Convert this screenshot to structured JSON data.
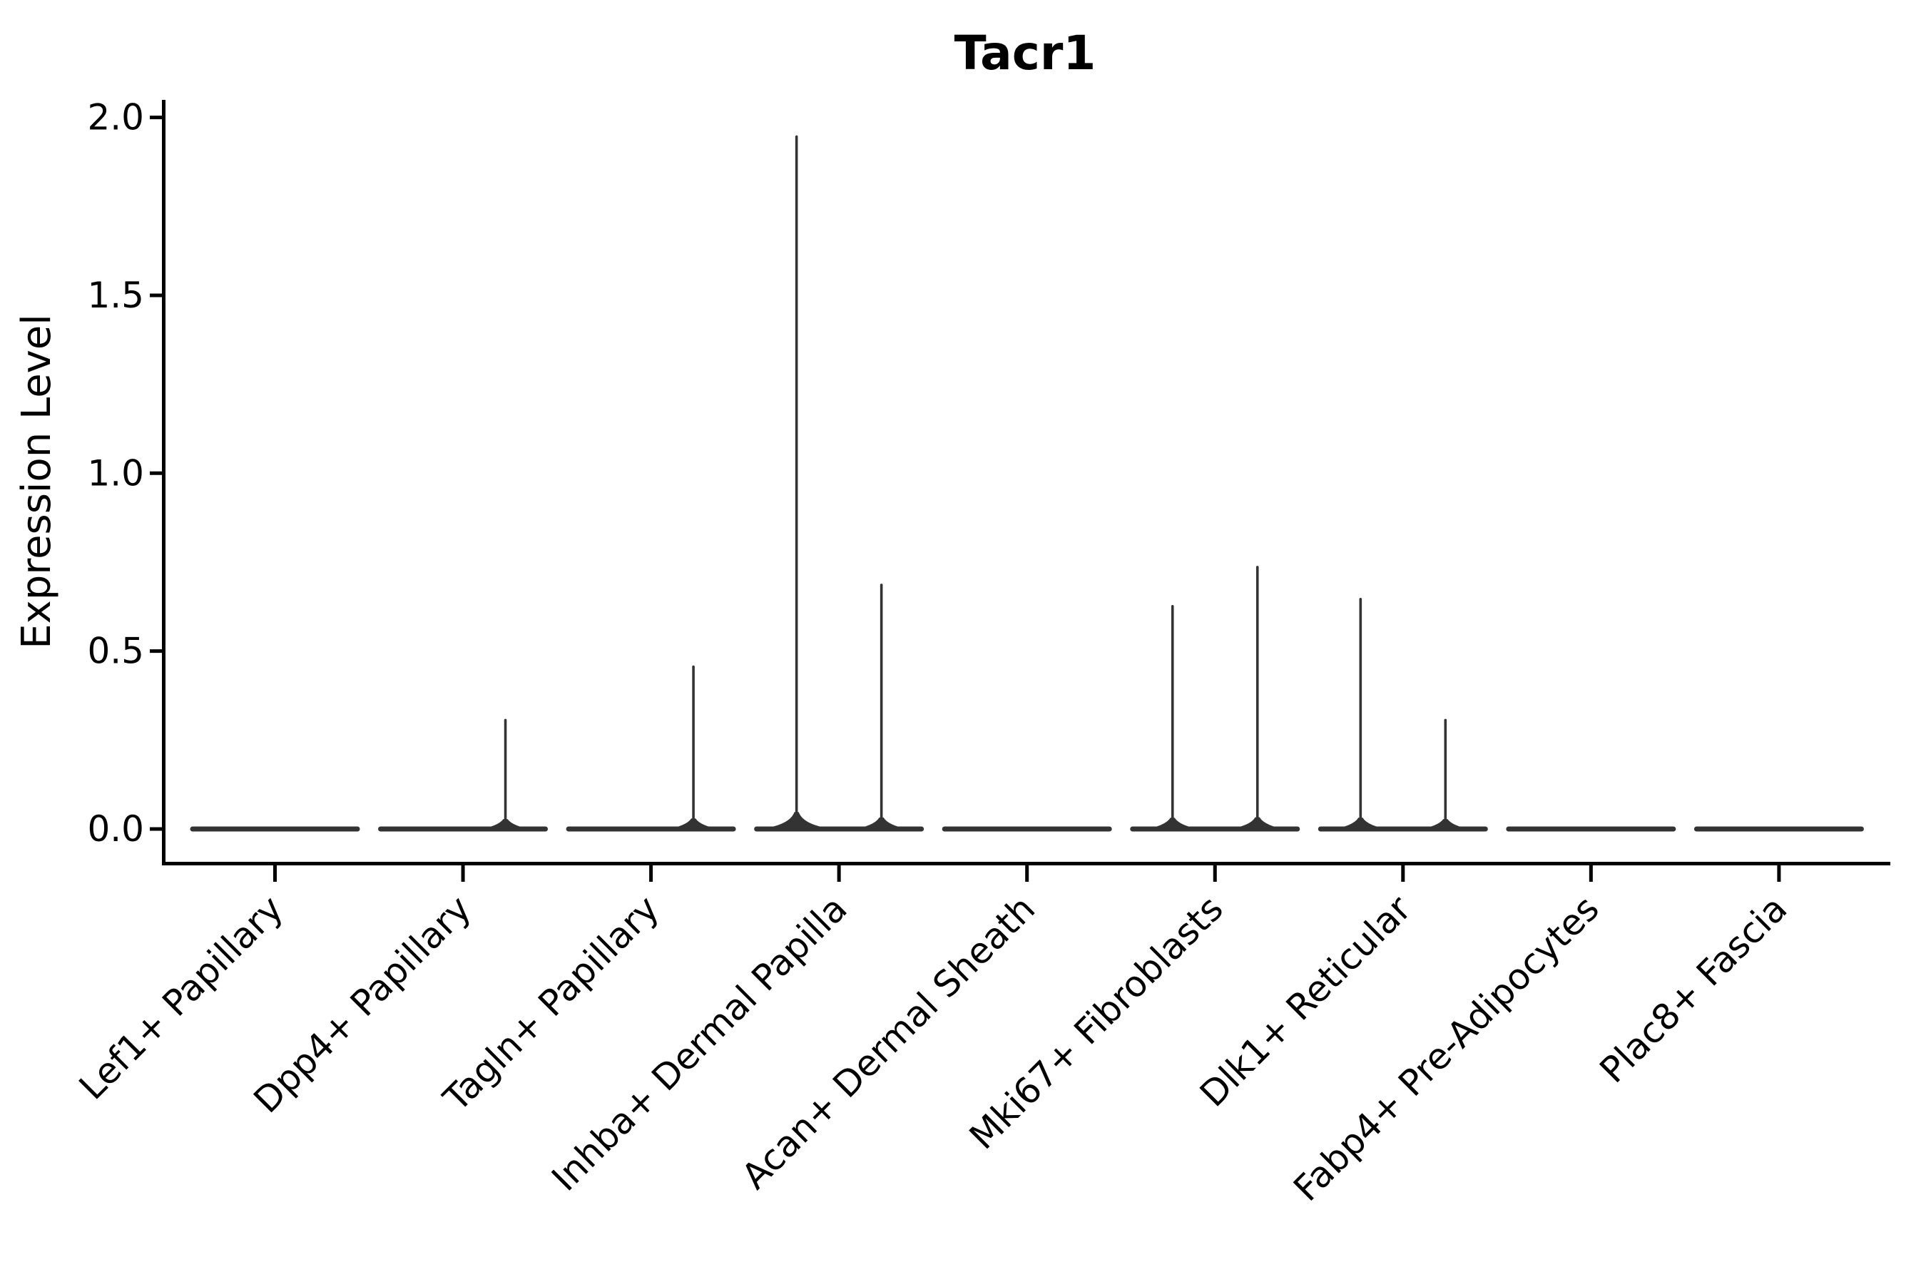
{
  "figure": {
    "title": "Tacr1",
    "ylabel": "Expression Level"
  },
  "chart_data": {
    "type": "violin",
    "title": "Tacr1",
    "xlabel": "",
    "ylabel": "Expression Level",
    "ylim": [
      0,
      2.0
    ],
    "yticks": [
      "0.0",
      "0.5",
      "1.0",
      "1.5",
      "2.0"
    ],
    "ytick_values": [
      0,
      0.5,
      1.0,
      1.5,
      2.0
    ],
    "grid": false,
    "legend": "none",
    "categories": [
      "Lef1+ Papillary",
      "Dpp4+ Papillary",
      "Tagln+ Papillary",
      "Inhba+ Dermal Papilla",
      "Acan+ Dermal Sheath",
      "Mki67+ Fibroblasts",
      "Dlk1+ Reticular",
      "Fabp4+ Pre-Adipocytes",
      "Plac8+ Fascia"
    ],
    "groups": [
      {
        "label": "Lef1+ Papillary",
        "baseline_value": 0,
        "peaks": []
      },
      {
        "label": "Dpp4+ Papillary",
        "baseline_value": 0,
        "peaks": [
          {
            "position": "right",
            "max": 0.31
          }
        ]
      },
      {
        "label": "Tagln+ Papillary",
        "baseline_value": 0,
        "peaks": [
          {
            "position": "right",
            "max": 0.46
          }
        ]
      },
      {
        "label": "Inhba+ Dermal Papilla",
        "baseline_value": 0,
        "peaks": [
          {
            "position": "left",
            "max": 1.95
          },
          {
            "position": "right",
            "max": 0.69
          }
        ]
      },
      {
        "label": "Acan+ Dermal Sheath",
        "baseline_value": 0,
        "peaks": []
      },
      {
        "label": "Mki67+ Fibroblasts",
        "baseline_value": 0,
        "peaks": [
          {
            "position": "left",
            "max": 0.63
          },
          {
            "position": "right",
            "max": 0.74
          }
        ]
      },
      {
        "label": "Dlk1+ Reticular",
        "baseline_value": 0,
        "peaks": [
          {
            "position": "left",
            "max": 0.65
          },
          {
            "position": "right",
            "max": 0.31
          }
        ]
      },
      {
        "label": "Fabp4+ Pre-Adipocytes",
        "baseline_value": 0,
        "peaks": []
      },
      {
        "label": "Plac8+ Fascia",
        "baseline_value": 0,
        "peaks": []
      }
    ],
    "colors": {
      "violin": "#333333",
      "axis": "#000000",
      "text": "#000000",
      "background": "#ffffff"
    }
  }
}
